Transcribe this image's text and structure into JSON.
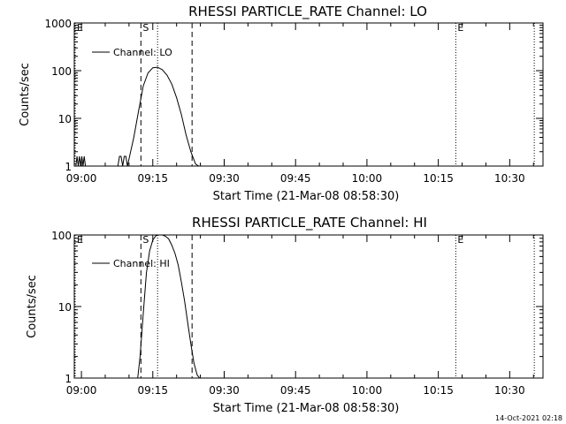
{
  "chart_data": [
    {
      "type": "line",
      "title": "RHESSI PARTICLE_RATE Channel: LO",
      "xlabel": "Start Time (21-Mar-08 08:58:30)",
      "ylabel": "Counts/sec",
      "x_ticks": [
        "09:00",
        "09:15",
        "09:30",
        "09:45",
        "10:00",
        "10:15",
        "10:30"
      ],
      "y_ticks": [
        "1",
        "10",
        "100",
        "1000"
      ],
      "xlim": [
        "08:58:30",
        "10:37:00"
      ],
      "ylim": [
        1,
        1000
      ],
      "yscale": "log",
      "legend_position": "upper-left",
      "series": [
        {
          "name": "Channel: LO",
          "x": [
            "08:58:50",
            "08:59:05",
            "08:59:20",
            "08:59:35",
            "08:59:50",
            "09:00:05",
            "09:00:20",
            "09:00:35",
            "09:00:50",
            "09:01:05",
            "09:07:40",
            "09:08:00",
            "09:08:20",
            "09:08:40",
            "09:09:00",
            "09:09:20",
            "09:09:40",
            "09:10:20",
            "09:11:00",
            "09:12:00",
            "09:13:00",
            "09:14:00",
            "09:15:00",
            "09:16:00",
            "09:17:00",
            "09:18:00",
            "09:19:00",
            "09:20:00",
            "09:21:00",
            "09:22:00",
            "09:23:00",
            "09:24:00",
            "09:24:40"
          ],
          "y": [
            1,
            1.6,
            1,
            1.6,
            1,
            1.6,
            1,
            1.6,
            1,
            1,
            1,
            1.6,
            1.6,
            1,
            1.6,
            1.6,
            1,
            2,
            4,
            14,
            48,
            90,
            115,
            118,
            105,
            80,
            52,
            27,
            12,
            4.5,
            2,
            1.1,
            1
          ]
        }
      ],
      "marks": [
        {
          "label": "E",
          "style": "dotted",
          "x": "08:58:30"
        },
        {
          "label": "S",
          "style": "dashed",
          "x": "09:12:30"
        },
        {
          "label": "",
          "style": "dotted",
          "x": "09:16:00"
        },
        {
          "label": "",
          "style": "dashed",
          "x": "09:23:15"
        },
        {
          "label": "E",
          "style": "dotted",
          "x": "10:18:40"
        },
        {
          "label": "",
          "style": "dotted",
          "x": "10:35:10"
        }
      ]
    },
    {
      "type": "line",
      "title": "RHESSI PARTICLE_RATE Channel: HI",
      "xlabel": "Start Time (21-Mar-08 08:58:30)",
      "ylabel": "Counts/sec",
      "x_ticks": [
        "09:00",
        "09:15",
        "09:30",
        "09:45",
        "10:00",
        "10:15",
        "10:30"
      ],
      "y_ticks": [
        "1",
        "10",
        "100"
      ],
      "xlim": [
        "08:58:30",
        "10:37:00"
      ],
      "ylim": [
        1,
        100
      ],
      "yscale": "log",
      "legend_position": "upper-left",
      "series": [
        {
          "name": "Channel: HI",
          "x": [
            "09:11:50",
            "09:12:20",
            "09:13:00",
            "09:13:40",
            "09:14:20",
            "09:15:00",
            "09:15:40",
            "09:16:20",
            "09:17:00",
            "09:17:40",
            "09:18:20",
            "09:19:00",
            "09:19:40",
            "09:20:20",
            "09:21:00",
            "09:21:40",
            "09:22:20",
            "09:23:00",
            "09:23:40",
            "09:24:20",
            "09:24:50"
          ],
          "y": [
            1,
            2,
            8,
            30,
            60,
            85,
            98,
            100,
            100,
            96,
            88,
            72,
            55,
            38,
            22,
            12,
            6,
            3,
            1.6,
            1.1,
            1
          ]
        }
      ],
      "marks": [
        {
          "label": "E",
          "style": "dotted",
          "x": "08:58:30"
        },
        {
          "label": "S",
          "style": "dashed",
          "x": "09:12:30"
        },
        {
          "label": "",
          "style": "dotted",
          "x": "09:16:00"
        },
        {
          "label": "",
          "style": "dashed",
          "x": "09:23:15"
        },
        {
          "label": "E",
          "style": "dotted",
          "x": "10:18:40"
        },
        {
          "label": "",
          "style": "dotted",
          "x": "10:35:10"
        }
      ]
    }
  ],
  "footer": {
    "timestamp": "14-Oct-2021 02:18"
  }
}
